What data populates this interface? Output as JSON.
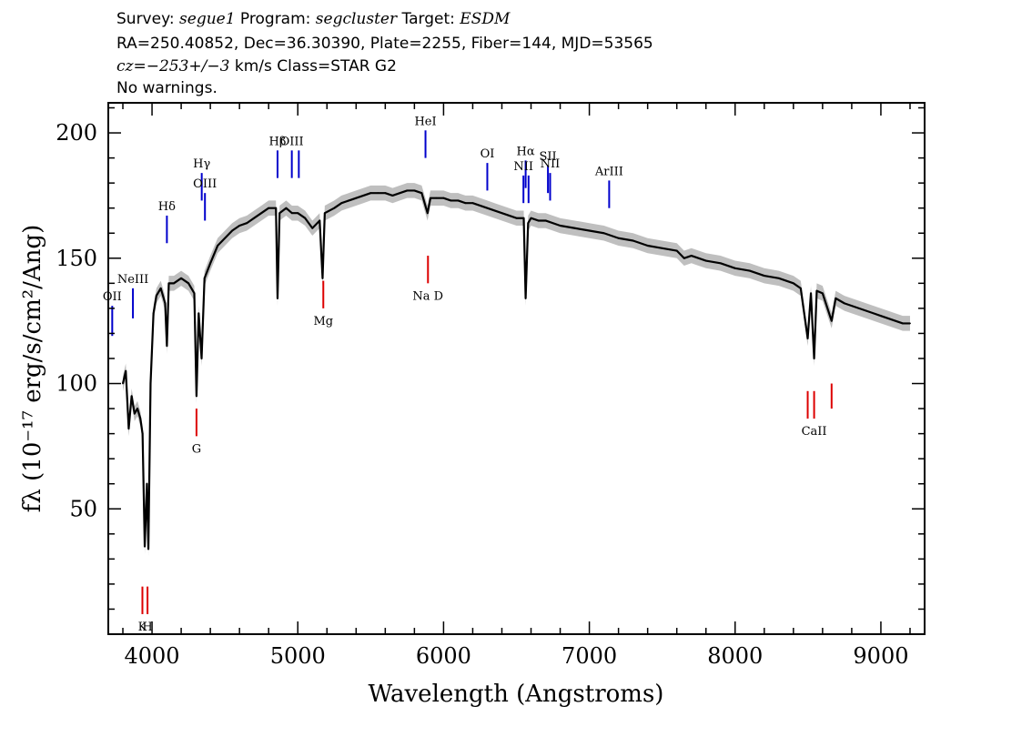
{
  "header": {
    "line1": {
      "survey_label": "Survey: ",
      "survey": "segue1",
      "program_label": " Program: ",
      "program": "segcluster",
      "target_label": " Target: ",
      "target": "ESDM"
    },
    "line2": "RA=250.40852, Dec=36.30390, Plate=2255, Fiber=144, MJD=53565",
    "line3": {
      "cz": "cz=−253+/−3",
      "rest": " km/s Class=STAR G2"
    },
    "line4": "No warnings."
  },
  "colors": {
    "emission": "#0000cc",
    "absorption": "#dd0000",
    "flux": "#000000",
    "error_band": "#bfbfbf"
  },
  "chart_data": {
    "type": "line",
    "xlabel": "Wavelength (Angstroms)",
    "ylabel": "fλ (10⁻¹⁷ erg/s/cm²/Ang)",
    "xlim": [
      3700,
      9300
    ],
    "ylim": [
      0,
      212
    ],
    "x_ticks": [
      4000,
      5000,
      6000,
      7000,
      8000,
      9000
    ],
    "y_ticks": [
      50,
      100,
      150,
      200
    ],
    "grid": false,
    "series": [
      {
        "x": [
          3800,
          3820,
          3840,
          3860,
          3880,
          3900,
          3920,
          3935,
          3950,
          3965,
          3975,
          3990,
          4010,
          4030,
          4060,
          4090,
          4102,
          4115,
          4150,
          4200,
          4250,
          4290,
          4305,
          4320,
          4340,
          4360,
          4400,
          4450,
          4500,
          4550,
          4600,
          4650,
          4700,
          4750,
          4800,
          4850,
          4861,
          4875,
          4920,
          4960,
          5000,
          5050,
          5100,
          5150,
          5170,
          5185,
          5250,
          5300,
          5350,
          5400,
          5450,
          5500,
          5550,
          5600,
          5650,
          5700,
          5750,
          5800,
          5850,
          5890,
          5910,
          5950,
          6000,
          6050,
          6100,
          6150,
          6200,
          6250,
          6300,
          6350,
          6400,
          6450,
          6500,
          6550,
          6563,
          6580,
          6600,
          6650,
          6700,
          6800,
          6900,
          7000,
          7100,
          7200,
          7300,
          7400,
          7500,
          7600,
          7650,
          7700,
          7800,
          7900,
          8000,
          8100,
          8200,
          8300,
          8400,
          8450,
          8498,
          8520,
          8542,
          8560,
          8600,
          8662,
          8690,
          8750,
          8800,
          8850,
          8900,
          8950,
          9000,
          9050,
          9100,
          9150,
          9200
        ],
        "y": [
          100,
          105,
          82,
          95,
          88,
          90,
          86,
          80,
          35,
          60,
          34,
          100,
          128,
          135,
          138,
          132,
          115,
          140,
          140,
          142,
          140,
          136,
          95,
          128,
          110,
          142,
          148,
          155,
          158,
          161,
          163,
          164,
          166,
          168,
          170,
          170,
          134,
          168,
          170,
          168,
          168,
          166,
          162,
          165,
          142,
          168,
          170,
          172,
          173,
          174,
          175,
          176,
          176,
          176,
          175,
          176,
          177,
          177,
          176,
          168,
          174,
          174,
          174,
          173,
          173,
          172,
          172,
          171,
          170,
          169,
          168,
          167,
          166,
          166,
          134,
          164,
          166,
          165,
          165,
          163,
          162,
          161,
          160,
          158,
          157,
          155,
          154,
          153,
          150,
          151,
          149,
          148,
          146,
          145,
          143,
          142,
          140,
          138,
          118,
          136,
          110,
          137,
          136,
          125,
          134,
          132,
          131,
          130,
          129,
          128,
          127,
          126,
          125,
          124,
          124
        ]
      }
    ]
  },
  "emission_lines": [
    {
      "label": "OII",
      "wave": 3727,
      "y_top": 131,
      "y_bot": 119
    },
    {
      "label": "NeIII",
      "wave": 3869,
      "y_top": 138,
      "y_bot": 126
    },
    {
      "label": "Hδ",
      "wave": 4102,
      "y_top": 167,
      "y_bot": 156
    },
    {
      "label": "Hγ",
      "wave": 4341,
      "y_top": 184,
      "y_bot": 173
    },
    {
      "label": "OIII",
      "wave": 4363,
      "y_top": 176,
      "y_bot": 165
    },
    {
      "label": "Hβ",
      "wave": 4861,
      "y_top": 193,
      "y_bot": 182
    },
    {
      "label": "OIII",
      "wave": 4959,
      "y_top": 193,
      "y_bot": 182
    },
    {
      "label": "",
      "wave": 5007,
      "y_top": 193,
      "y_bot": 182
    },
    {
      "label": "HeI",
      "wave": 5876,
      "y_top": 201,
      "y_bot": 190
    },
    {
      "label": "OI",
      "wave": 6300,
      "y_top": 188,
      "y_bot": 177
    },
    {
      "label": "NII",
      "wave": 6548,
      "y_top": 183,
      "y_bot": 172
    },
    {
      "label": "Hα",
      "wave": 6563,
      "y_top": 189,
      "y_bot": 178
    },
    {
      "label": "",
      "wave": 6583,
      "y_top": 183,
      "y_bot": 172
    },
    {
      "label": "SII",
      "wave": 6716,
      "y_top": 187,
      "y_bot": 176
    },
    {
      "label": "NII",
      "wave": 6731,
      "y_top": 184,
      "y_bot": 173
    },
    {
      "label": "ArIII",
      "wave": 7136,
      "y_top": 181,
      "y_bot": 170
    }
  ],
  "absorption_lines": [
    {
      "label": "K",
      "wave": 3934,
      "y_top": 19,
      "y_bot": 8
    },
    {
      "label": "H",
      "wave": 3969,
      "y_top": 19,
      "y_bot": 8
    },
    {
      "label": "G",
      "wave": 4305,
      "y_top": 90,
      "y_bot": 79
    },
    {
      "label": "Mg",
      "wave": 5175,
      "y_top": 141,
      "y_bot": 130
    },
    {
      "label": "Na D",
      "wave": 5893,
      "y_top": 151,
      "y_bot": 140
    },
    {
      "label": "",
      "wave": 8498,
      "y_top": 97,
      "y_bot": 86
    },
    {
      "label": "CaII",
      "wave": 8542,
      "y_top": 97,
      "y_bot": 86
    },
    {
      "label": "",
      "wave": 8662,
      "y_top": 100,
      "y_bot": 90
    }
  ]
}
